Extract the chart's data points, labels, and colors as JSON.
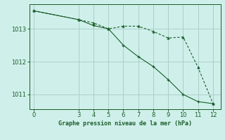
{
  "title": "Graphe pression niveau de la mer (hPa)",
  "bg_color": "#cff0ea",
  "grid_color": "#aacfc8",
  "line_color": "#1a5c2a",
  "x_ticks": [
    0,
    3,
    4,
    5,
    6,
    7,
    8,
    9,
    10,
    11,
    12
  ],
  "y_ticks": [
    1011,
    1012,
    1013
  ],
  "xlim": [
    -0.3,
    12.5
  ],
  "ylim": [
    1010.55,
    1013.75
  ],
  "line1_x": [
    0,
    3,
    4,
    5,
    6,
    7,
    8,
    9,
    10,
    11,
    12
  ],
  "line1_y": [
    1013.55,
    1013.28,
    1013.18,
    1013.0,
    1013.08,
    1013.08,
    1012.92,
    1012.72,
    1012.75,
    1011.82,
    1010.72
  ],
  "line2_x": [
    0,
    3,
    4,
    5,
    6,
    7,
    8,
    9,
    10,
    11,
    12
  ],
  "line2_y": [
    1013.55,
    1013.28,
    1013.1,
    1013.0,
    1012.5,
    1012.15,
    1011.85,
    1011.45,
    1011.0,
    1010.78,
    1010.72
  ]
}
